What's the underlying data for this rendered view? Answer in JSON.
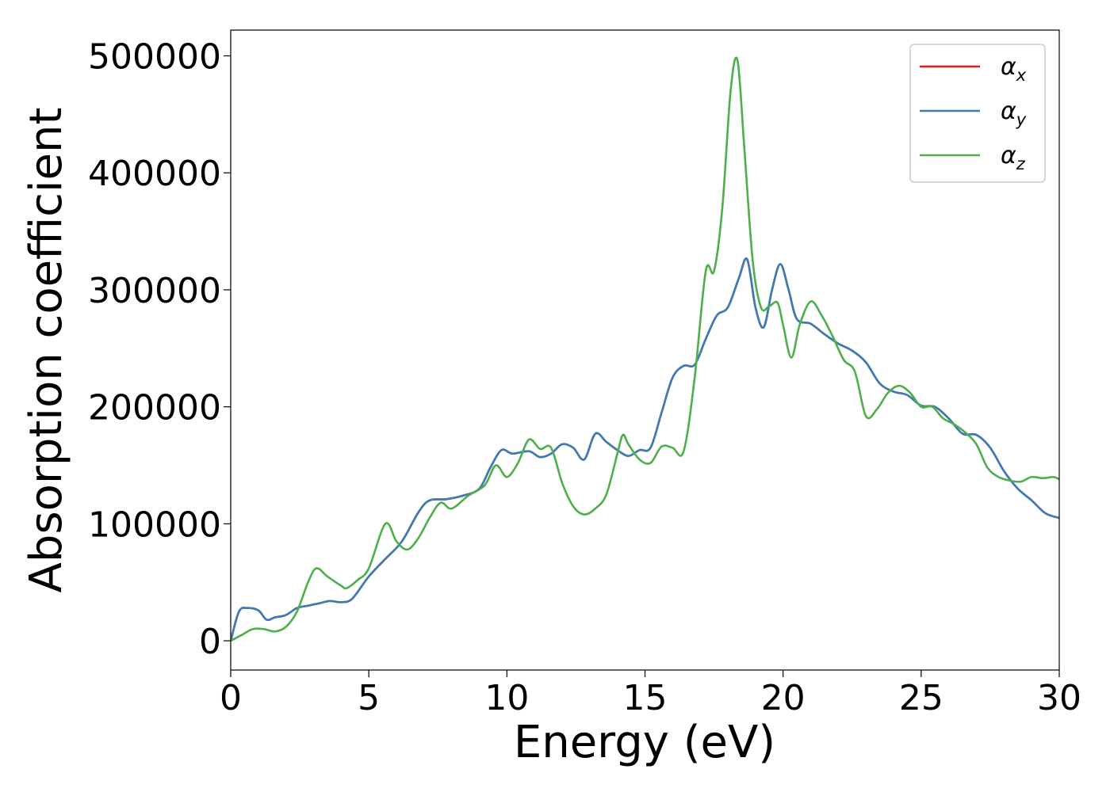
{
  "chart_data": {
    "type": "line",
    "xlabel": "Energy (eV)",
    "ylabel": "Absorption coefficient",
    "xlim": [
      0,
      30
    ],
    "ylim": [
      -25000,
      522000
    ],
    "xticks": [
      0,
      5,
      10,
      15,
      20,
      25,
      30
    ],
    "yticks": [
      0,
      100000,
      200000,
      300000,
      400000,
      500000
    ],
    "grid": false,
    "legend_position": "top-right",
    "legend": [
      {
        "symbol": "α",
        "subscript": "x",
        "color": "#e41a1c"
      },
      {
        "symbol": "α",
        "subscript": "y",
        "color": "#377eb8"
      },
      {
        "symbol": "α",
        "subscript": "z",
        "color": "#4daf4a"
      }
    ],
    "series": [
      {
        "name": "αx",
        "color": "#e41a1c",
        "x": [
          0,
          0.3,
          0.6,
          1.0,
          1.3,
          1.6,
          2.0,
          2.4,
          2.8,
          3.2,
          3.6,
          4.0,
          4.4,
          5.0,
          5.6,
          6.2,
          6.8,
          7.2,
          7.8,
          8.4,
          9.0,
          9.4,
          9.8,
          10.2,
          10.8,
          11.2,
          11.6,
          12.0,
          12.4,
          12.8,
          13.2,
          13.6,
          14.0,
          14.4,
          14.8,
          15.2,
          15.6,
          16.0,
          16.4,
          16.8,
          17.2,
          17.6,
          18.0,
          18.4,
          18.7,
          19.0,
          19.3,
          19.6,
          19.9,
          20.2,
          20.5,
          21.0,
          21.5,
          22.0,
          22.5,
          23.0,
          23.5,
          24.0,
          24.5,
          25.0,
          25.5,
          26.0,
          26.5,
          27.0,
          27.5,
          28.0,
          28.5,
          29.0,
          29.5,
          30.0
        ],
        "y": [
          0,
          25000,
          28000,
          26000,
          18000,
          20000,
          22000,
          28000,
          30000,
          32000,
          34000,
          33000,
          36000,
          55000,
          70000,
          85000,
          110000,
          120000,
          121000,
          124000,
          130000,
          148000,
          163000,
          160000,
          162000,
          157000,
          160000,
          168000,
          165000,
          155000,
          177000,
          170000,
          163000,
          158000,
          163000,
          165000,
          195000,
          225000,
          235000,
          236000,
          258000,
          278000,
          285000,
          310000,
          326000,
          285000,
          268000,
          300000,
          322000,
          300000,
          275000,
          271000,
          262000,
          254000,
          248000,
          238000,
          220000,
          213000,
          210000,
          201000,
          200000,
          190000,
          177000,
          176000,
          165000,
          145000,
          130000,
          120000,
          109000,
          105000
        ]
      },
      {
        "name": "αy",
        "color": "#377eb8",
        "x": [
          0,
          0.3,
          0.6,
          1.0,
          1.3,
          1.6,
          2.0,
          2.4,
          2.8,
          3.2,
          3.6,
          4.0,
          4.4,
          5.0,
          5.6,
          6.2,
          6.8,
          7.2,
          7.8,
          8.4,
          9.0,
          9.4,
          9.8,
          10.2,
          10.8,
          11.2,
          11.6,
          12.0,
          12.4,
          12.8,
          13.2,
          13.6,
          14.0,
          14.4,
          14.8,
          15.2,
          15.6,
          16.0,
          16.4,
          16.8,
          17.2,
          17.6,
          18.0,
          18.4,
          18.7,
          19.0,
          19.3,
          19.6,
          19.9,
          20.2,
          20.5,
          21.0,
          21.5,
          22.0,
          22.5,
          23.0,
          23.5,
          24.0,
          24.5,
          25.0,
          25.5,
          26.0,
          26.5,
          27.0,
          27.5,
          28.0,
          28.5,
          29.0,
          29.5,
          30.0
        ],
        "y": [
          0,
          25000,
          28000,
          26000,
          18000,
          20000,
          22000,
          28000,
          30000,
          32000,
          34000,
          33000,
          36000,
          55000,
          70000,
          85000,
          110000,
          120000,
          121000,
          124000,
          130000,
          148000,
          163000,
          160000,
          162000,
          157000,
          160000,
          168000,
          165000,
          155000,
          177000,
          170000,
          163000,
          158000,
          163000,
          165000,
          195000,
          225000,
          235000,
          236000,
          258000,
          278000,
          285000,
          310000,
          326000,
          285000,
          268000,
          300000,
          322000,
          300000,
          275000,
          271000,
          262000,
          254000,
          248000,
          238000,
          220000,
          213000,
          210000,
          201000,
          200000,
          190000,
          177000,
          176000,
          165000,
          145000,
          130000,
          120000,
          109000,
          105000
        ]
      },
      {
        "name": "αz",
        "color": "#4daf4a",
        "x": [
          0,
          0.4,
          0.8,
          1.2,
          1.6,
          2.0,
          2.4,
          2.8,
          3.1,
          3.5,
          4.0,
          4.2,
          4.6,
          5.0,
          5.6,
          6.0,
          6.4,
          6.8,
          7.2,
          7.6,
          8.0,
          8.6,
          9.2,
          9.6,
          10.0,
          10.4,
          10.8,
          11.2,
          11.6,
          12.0,
          12.4,
          12.8,
          13.2,
          13.6,
          14.0,
          14.2,
          14.4,
          14.8,
          15.2,
          15.6,
          16.0,
          16.4,
          16.8,
          17.2,
          17.5,
          17.8,
          18.1,
          18.35,
          18.6,
          18.9,
          19.2,
          19.5,
          19.8,
          20.0,
          20.3,
          20.6,
          21.0,
          21.4,
          21.8,
          22.2,
          22.6,
          23.0,
          23.4,
          23.8,
          24.2,
          24.6,
          25.0,
          25.4,
          25.8,
          26.2,
          26.6,
          27.0,
          27.4,
          27.8,
          28.2,
          28.6,
          29.0,
          29.4,
          29.8,
          30.0
        ],
        "y": [
          0,
          5000,
          10000,
          10000,
          8000,
          12000,
          25000,
          50000,
          62000,
          55000,
          47000,
          45000,
          52000,
          62000,
          100000,
          85000,
          78000,
          88000,
          105000,
          118000,
          113000,
          124000,
          133000,
          150000,
          140000,
          152000,
          172000,
          164000,
          165000,
          135000,
          115000,
          108000,
          113000,
          125000,
          160000,
          176000,
          168000,
          155000,
          152000,
          166000,
          165000,
          162000,
          225000,
          316000,
          316000,
          370000,
          470000,
          496000,
          420000,
          325000,
          285000,
          286000,
          289000,
          270000,
          242000,
          270000,
          290000,
          278000,
          260000,
          240000,
          230000,
          192000,
          198000,
          212000,
          218000,
          212000,
          200000,
          200000,
          190000,
          185000,
          178000,
          168000,
          148000,
          140000,
          137000,
          136000,
          140000,
          139000,
          140000,
          138000
        ]
      }
    ]
  }
}
